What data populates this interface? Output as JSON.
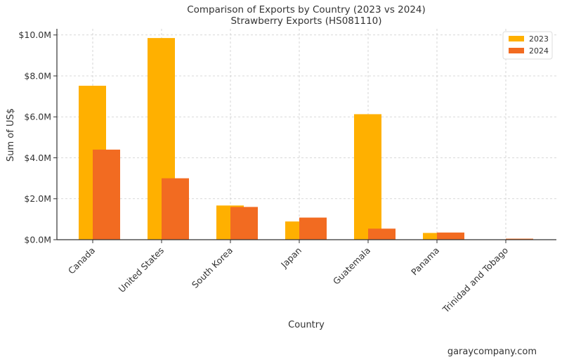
{
  "chart_data": {
    "type": "bar",
    "title": "Comparison of Exports by Country (2023 vs 2024)",
    "subtitle": "Strawberry Exports (HS081110)",
    "xlabel": "Country",
    "ylabel": "Sum of US$",
    "categories": [
      "Canada",
      "United States",
      "South Korea",
      "Japan",
      "Guatemala",
      "Panama",
      "Trinidad and Tobago"
    ],
    "series": [
      {
        "name": "2023",
        "color": "#FFB000",
        "values": [
          7.52,
          9.85,
          1.67,
          0.89,
          6.13,
          0.33,
          0.0
        ]
      },
      {
        "name": "2024",
        "color": "#F26B21",
        "values": [
          4.4,
          3.0,
          1.6,
          1.08,
          0.54,
          0.35,
          0.05
        ]
      }
    ],
    "value_unit": "millions of US$",
    "ylim": [
      0,
      10.3
    ],
    "yticks": [
      0,
      2,
      4,
      6,
      8,
      10
    ],
    "ytick_labels": [
      "$0.0M",
      "$2.0M",
      "$4.0M",
      "$6.0M",
      "$8.0M",
      "$10.0M"
    ],
    "grid": true,
    "legend_position": "top-right"
  },
  "footer": {
    "watermark": "garaycompany.com"
  }
}
